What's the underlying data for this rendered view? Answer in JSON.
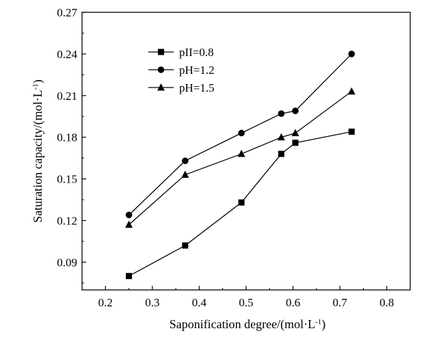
{
  "chart_data": {
    "type": "line",
    "title": "",
    "xlabel": "Saponification degree/(mol·L",
    "xlabel_sup": "-1",
    "xlabel_end": ")",
    "ylabel": "Saturation capacity/(mol·L",
    "ylabel_sup": "-1",
    "ylabel_end": ")",
    "xlim": [
      0.15,
      0.85
    ],
    "ylim": [
      0.07,
      0.27
    ],
    "xticks": [
      "0.2",
      "0.3",
      "0.4",
      "0.5",
      "0.6",
      "0.7",
      "0.8"
    ],
    "yticks": [
      "0.09",
      "0.12",
      "0.15",
      "0.18",
      "0.21",
      "0.24",
      "0.27"
    ],
    "grid": false,
    "legend_position": "top-left",
    "series": [
      {
        "name": "pII=0.8",
        "marker": "square",
        "x": [
          0.25,
          0.37,
          0.49,
          0.575,
          0.605,
          0.725
        ],
        "y": [
          0.08,
          0.102,
          0.133,
          0.168,
          0.176,
          0.184
        ]
      },
      {
        "name": "pH=1.2",
        "marker": "circle",
        "x": [
          0.25,
          0.37,
          0.49,
          0.575,
          0.605,
          0.725
        ],
        "y": [
          0.124,
          0.163,
          0.183,
          0.197,
          0.199,
          0.24
        ]
      },
      {
        "name": "pH=1.5",
        "marker": "triangle",
        "x": [
          0.25,
          0.37,
          0.49,
          0.575,
          0.605,
          0.725
        ],
        "y": [
          0.117,
          0.153,
          0.168,
          0.18,
          0.183,
          0.213
        ]
      }
    ]
  }
}
